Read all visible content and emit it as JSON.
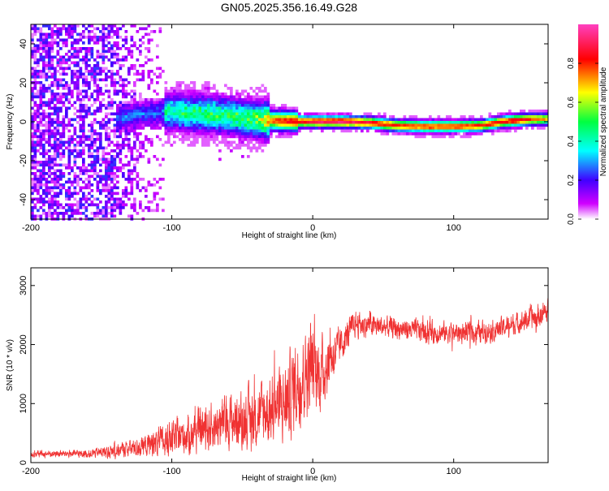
{
  "title": "GN05.2025.356.16.49.G28",
  "chart_data": [
    {
      "type": "heatmap",
      "title": "GN05.2025.356.16.49.G28",
      "xlabel": "Height of straight line (km)",
      "ylabel": "Frequency (Hz)",
      "xlim": [
        -200,
        167
      ],
      "ylim": [
        -50,
        50
      ],
      "xticks": [
        -200,
        -100,
        0,
        100
      ],
      "yticks": [
        -40,
        -20,
        0,
        20,
        40
      ],
      "xtick_labels": [
        "-200",
        "-100",
        "0",
        "100"
      ],
      "ytick_labels": [
        "-40",
        "-20",
        "0",
        "20",
        "40"
      ],
      "colorbar": {
        "label": "Normalized spectral amplitude",
        "range": [
          0,
          1
        ],
        "ticks": [
          "0.0",
          "0.2",
          "0.4",
          "0.6",
          "0.8"
        ],
        "colormap": [
          "#ffffff",
          "#d000ff",
          "#4000ff",
          "#00ffff",
          "#00ff40",
          "#ffff00",
          "#ff0000",
          "#ff40c0"
        ]
      },
      "ridge": {
        "x": [
          -150,
          -120,
          -100,
          -80,
          -60,
          -40,
          -25,
          -10,
          0,
          20,
          40,
          60,
          80,
          100,
          120,
          135,
          150,
          167
        ],
        "frequency_hz": [
          0,
          4,
          5,
          4,
          3,
          1,
          0.5,
          0,
          0,
          0,
          -0.5,
          -2,
          -2.5,
          -2.5,
          -2,
          0,
          1,
          1.5
        ],
        "amplitude": [
          0.25,
          0.4,
          0.45,
          0.5,
          0.5,
          0.55,
          0.8,
          0.85,
          0.9,
          0.95,
          0.85,
          0.8,
          0.8,
          0.8,
          0.8,
          0.85,
          0.85,
          0.7
        ]
      }
    },
    {
      "type": "line",
      "xlabel": "Height of straight line (km)",
      "ylabel": "SNR (10 * v/v)",
      "xlim": [
        -200,
        167
      ],
      "ylim": [
        0,
        3300
      ],
      "xticks": [
        -200,
        -100,
        0,
        100
      ],
      "yticks": [
        0,
        1000,
        2000,
        3000
      ],
      "xtick_labels": [
        "-200",
        "-100",
        "0",
        "100"
      ],
      "ytick_labels": [
        "0",
        "1000",
        "2000",
        "3000"
      ],
      "color": "#f03232",
      "series": [
        {
          "name": "SNR",
          "x": [
            -200,
            -180,
            -160,
            -140,
            -120,
            -100,
            -80,
            -60,
            -40,
            -20,
            -10,
            0,
            5,
            10,
            20,
            30,
            50,
            70,
            90,
            110,
            130,
            150,
            167
          ],
          "center": [
            150,
            150,
            150,
            200,
            280,
            400,
            550,
            700,
            800,
            1000,
            1400,
            1600,
            1500,
            1650,
            2000,
            2350,
            2300,
            2250,
            2200,
            2200,
            2250,
            2400,
            2550
          ],
          "amplitude": [
            80,
            80,
            100,
            150,
            250,
            400,
            500,
            600,
            700,
            900,
            1100,
            900,
            900,
            700,
            400,
            300,
            250,
            250,
            250,
            250,
            250,
            250,
            300
          ]
        }
      ]
    }
  ]
}
